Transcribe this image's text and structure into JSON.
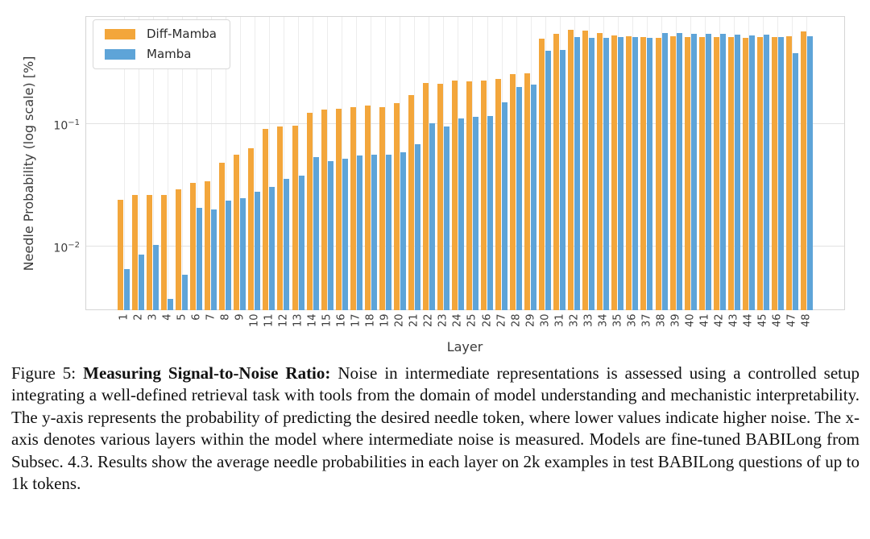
{
  "figure": {
    "caption": {
      "prefix": "Figure 5: ",
      "bold": "Measuring Signal-to-Noise Ratio:",
      "body": " Noise in intermediate representations is assessed using a controlled setup integrating a well-defined retrieval task with tools from the domain of model understanding and mechanistic interpretability. The y-axis represents the probability of predicting the desired needle token, where lower values indicate higher noise. The x-axis denotes various layers within the model where intermediate noise is measured. Models are fine-tuned BABILong from Subsec. 4.3. Results show the average needle probabilities in each layer on 2k examples in test BABILong questions of up to 1k tokens."
    }
  },
  "chart_data": {
    "type": "bar",
    "title": "",
    "xlabel": "Layer",
    "ylabel": "Needle Probability (log scale) [%]",
    "y_scale": "log",
    "ylim": [
      0.003,
      0.75
    ],
    "grid": true,
    "legend_position": "upper left",
    "y_ticks": [
      {
        "text": "10^−1",
        "value": 0.1
      },
      {
        "text": "10^−2",
        "value": 0.01
      }
    ],
    "categories": [
      1,
      2,
      3,
      4,
      5,
      6,
      7,
      8,
      9,
      10,
      11,
      12,
      13,
      14,
      15,
      16,
      17,
      18,
      19,
      20,
      21,
      22,
      23,
      24,
      25,
      26,
      27,
      28,
      29,
      30,
      31,
      32,
      33,
      34,
      35,
      36,
      37,
      38,
      39,
      40,
      41,
      42,
      43,
      44,
      45,
      46,
      47,
      48
    ],
    "series": [
      {
        "name": "Diff-Mamba",
        "color": "#F3A63B",
        "values": [
          0.024,
          0.026,
          0.026,
          0.026,
          0.029,
          0.033,
          0.034,
          0.048,
          0.056,
          0.063,
          0.09,
          0.095,
          0.096,
          0.123,
          0.129,
          0.131,
          0.136,
          0.139,
          0.136,
          0.147,
          0.171,
          0.213,
          0.211,
          0.224,
          0.222,
          0.223,
          0.229,
          0.252,
          0.258,
          0.489,
          0.54,
          0.58,
          0.568,
          0.545,
          0.52,
          0.515,
          0.509,
          0.498,
          0.515,
          0.507,
          0.504,
          0.507,
          0.505,
          0.499,
          0.505,
          0.508,
          0.517,
          0.562
        ]
      },
      {
        "name": "Mamba",
        "color": "#5EA4D8",
        "values": [
          0.0065,
          0.0085,
          0.0102,
          0.0037,
          0.0058,
          0.0205,
          0.02,
          0.0236,
          0.0244,
          0.0278,
          0.0302,
          0.0352,
          0.0376,
          0.0535,
          0.0496,
          0.0519,
          0.0551,
          0.0554,
          0.056,
          0.0583,
          0.0682,
          0.1005,
          0.0951,
          0.1106,
          0.1134,
          0.1151,
          0.1483,
          0.199,
          0.208,
          0.393,
          0.397,
          0.506,
          0.498,
          0.498,
          0.503,
          0.507,
          0.498,
          0.549,
          0.546,
          0.539,
          0.539,
          0.541,
          0.532,
          0.525,
          0.528,
          0.508,
          0.376,
          0.512
        ]
      }
    ]
  },
  "style_colors": {
    "grid_vertical": "#ececec",
    "grid_horizontal": "#e2e2e2",
    "spine": "#d5d5d5",
    "tick_text": "#3b3b3b"
  }
}
